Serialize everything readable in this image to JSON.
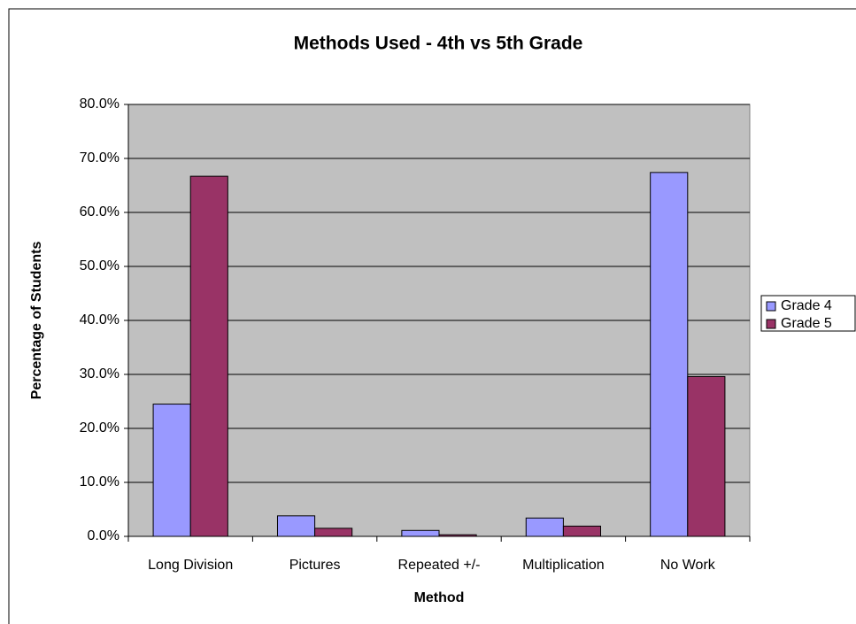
{
  "chart_data": {
    "type": "bar",
    "title": "Methods Used - 4th vs 5th Grade",
    "x_label": "Method",
    "y_label": "Percentage of Students",
    "categories": [
      "Long Division",
      "Pictures",
      "Repeated +/-",
      "Multiplication",
      "No Work"
    ],
    "series": [
      {
        "name": "Grade 4",
        "color": "#9999ff",
        "values": [
          24.5,
          3.8,
          1.1,
          3.4,
          67.4
        ]
      },
      {
        "name": "Grade 5",
        "color": "#993366",
        "values": [
          66.7,
          1.5,
          0.3,
          1.9,
          29.6
        ]
      }
    ],
    "ylim": [
      0,
      80
    ],
    "yticks": [
      {
        "value": 0,
        "label": "0.0%"
      },
      {
        "value": 10,
        "label": "10.0%"
      },
      {
        "value": 20,
        "label": "20.0%"
      },
      {
        "value": 30,
        "label": "30.0%"
      },
      {
        "value": 40,
        "label": "40.0%"
      },
      {
        "value": 50,
        "label": "50.0%"
      },
      {
        "value": 60,
        "label": "60.0%"
      },
      {
        "value": 70,
        "label": "70.0%"
      },
      {
        "value": 80,
        "label": "80.0%"
      }
    ],
    "grid": true,
    "legend": "right"
  }
}
